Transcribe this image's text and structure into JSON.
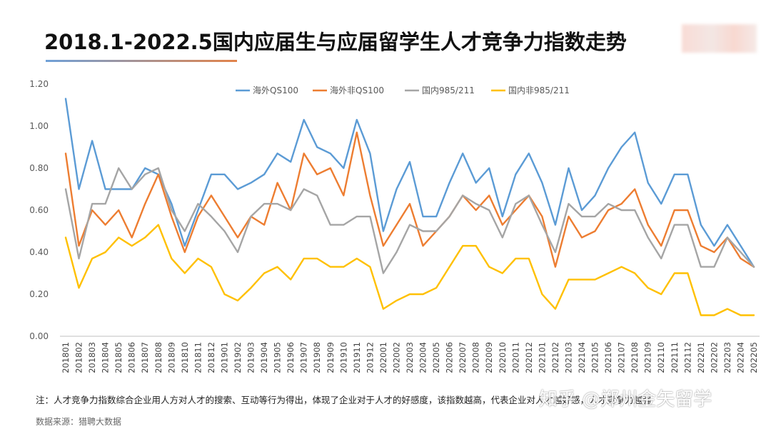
{
  "title": "2018.1-2022.5国内应届生与应届留学生人才竞争力指数走势",
  "note": "注：人才竞争力指数综合企业用人方对人才的搜索、互动等行为得出，体现了企业对于人才的好感度，该指数越高，代表企业对人才越好感，人才竞争力越强",
  "source": "数据来源：猎聘大数据",
  "watermark": "知乎 @郑州金矢留学",
  "colors": {
    "qs100": "#5b9bd5",
    "non_qs100": "#ed7d31",
    "domestic_985": "#a5a5a5",
    "domestic_non985": "#ffc000"
  },
  "chart_data": {
    "type": "line",
    "title": "2018.1-2022.5国内应届生与应届留学生人才竞争力指数走势",
    "xlabel": "",
    "ylabel": "",
    "ylim": [
      0,
      1.2
    ],
    "yticks": [
      "0.00",
      "0.20",
      "0.40",
      "0.60",
      "0.80",
      "1.00",
      "1.20"
    ],
    "grid": false,
    "legend": "top",
    "categories": [
      "201801",
      "201802",
      "201803",
      "201804",
      "201805",
      "201806",
      "201807",
      "201808",
      "201809",
      "201810",
      "201811",
      "201812",
      "201901",
      "201902",
      "201903",
      "201904",
      "201905",
      "201906",
      "201907",
      "201908",
      "201909",
      "201910",
      "201911",
      "201912",
      "202001",
      "202002",
      "202003",
      "202004",
      "202005",
      "202006",
      "202007",
      "202008",
      "202009",
      "202010",
      "202011",
      "202012",
      "202101",
      "202102",
      "202103",
      "202104",
      "202105",
      "202106",
      "202107",
      "202108",
      "202109",
      "202110",
      "202111",
      "202112",
      "202201",
      "202202",
      "202203",
      "202204",
      "202205"
    ],
    "series": [
      {
        "name": "海外QS100",
        "color": "#5b9bd5",
        "values": [
          1.13,
          0.7,
          0.93,
          0.7,
          0.7,
          0.7,
          0.8,
          0.77,
          0.63,
          0.43,
          0.6,
          0.77,
          0.77,
          0.7,
          0.73,
          0.77,
          0.87,
          0.83,
          1.03,
          0.9,
          0.87,
          0.8,
          1.03,
          0.87,
          0.5,
          0.7,
          0.83,
          0.57,
          0.57,
          0.73,
          0.87,
          0.73,
          0.8,
          0.57,
          0.77,
          0.87,
          0.73,
          0.53,
          0.8,
          0.6,
          0.67,
          0.8,
          0.9,
          0.97,
          0.73,
          0.63,
          0.77,
          0.77,
          0.53,
          0.43,
          0.53,
          0.43,
          0.33
        ]
      },
      {
        "name": "海外非QS100",
        "color": "#ed7d31",
        "values": [
          0.87,
          0.43,
          0.6,
          0.53,
          0.6,
          0.47,
          0.63,
          0.77,
          0.57,
          0.4,
          0.57,
          0.67,
          0.57,
          0.47,
          0.57,
          0.53,
          0.73,
          0.6,
          0.87,
          0.77,
          0.8,
          0.67,
          0.97,
          0.67,
          0.43,
          0.53,
          0.63,
          0.43,
          0.5,
          0.57,
          0.67,
          0.6,
          0.67,
          0.53,
          0.6,
          0.67,
          0.57,
          0.33,
          0.57,
          0.47,
          0.5,
          0.6,
          0.63,
          0.7,
          0.53,
          0.43,
          0.6,
          0.6,
          0.43,
          0.4,
          0.47,
          0.37,
          0.33
        ]
      },
      {
        "name": "国内985/211",
        "color": "#a5a5a5",
        "values": [
          0.7,
          0.37,
          0.63,
          0.63,
          0.8,
          0.7,
          0.77,
          0.8,
          0.6,
          0.5,
          0.63,
          0.57,
          0.5,
          0.4,
          0.57,
          0.63,
          0.63,
          0.6,
          0.7,
          0.67,
          0.53,
          0.53,
          0.57,
          0.57,
          0.3,
          0.4,
          0.53,
          0.5,
          0.5,
          0.57,
          0.67,
          0.63,
          0.6,
          0.47,
          0.63,
          0.67,
          0.53,
          0.4,
          0.63,
          0.57,
          0.57,
          0.63,
          0.6,
          0.6,
          0.47,
          0.37,
          0.53,
          0.53,
          0.33,
          0.33,
          0.47,
          0.4,
          0.33
        ]
      },
      {
        "name": "国内非985/211",
        "color": "#ffc000",
        "values": [
          0.47,
          0.23,
          0.37,
          0.4,
          0.47,
          0.43,
          0.47,
          0.53,
          0.37,
          0.3,
          0.37,
          0.33,
          0.2,
          0.17,
          0.23,
          0.3,
          0.33,
          0.27,
          0.37,
          0.37,
          0.33,
          0.33,
          0.37,
          0.33,
          0.13,
          0.17,
          0.2,
          0.2,
          0.23,
          0.33,
          0.43,
          0.43,
          0.33,
          0.3,
          0.37,
          0.37,
          0.2,
          0.13,
          0.27,
          0.27,
          0.27,
          0.3,
          0.33,
          0.3,
          0.23,
          0.2,
          0.3,
          0.3,
          0.1,
          0.1,
          0.13,
          0.1,
          0.1
        ]
      }
    ]
  }
}
